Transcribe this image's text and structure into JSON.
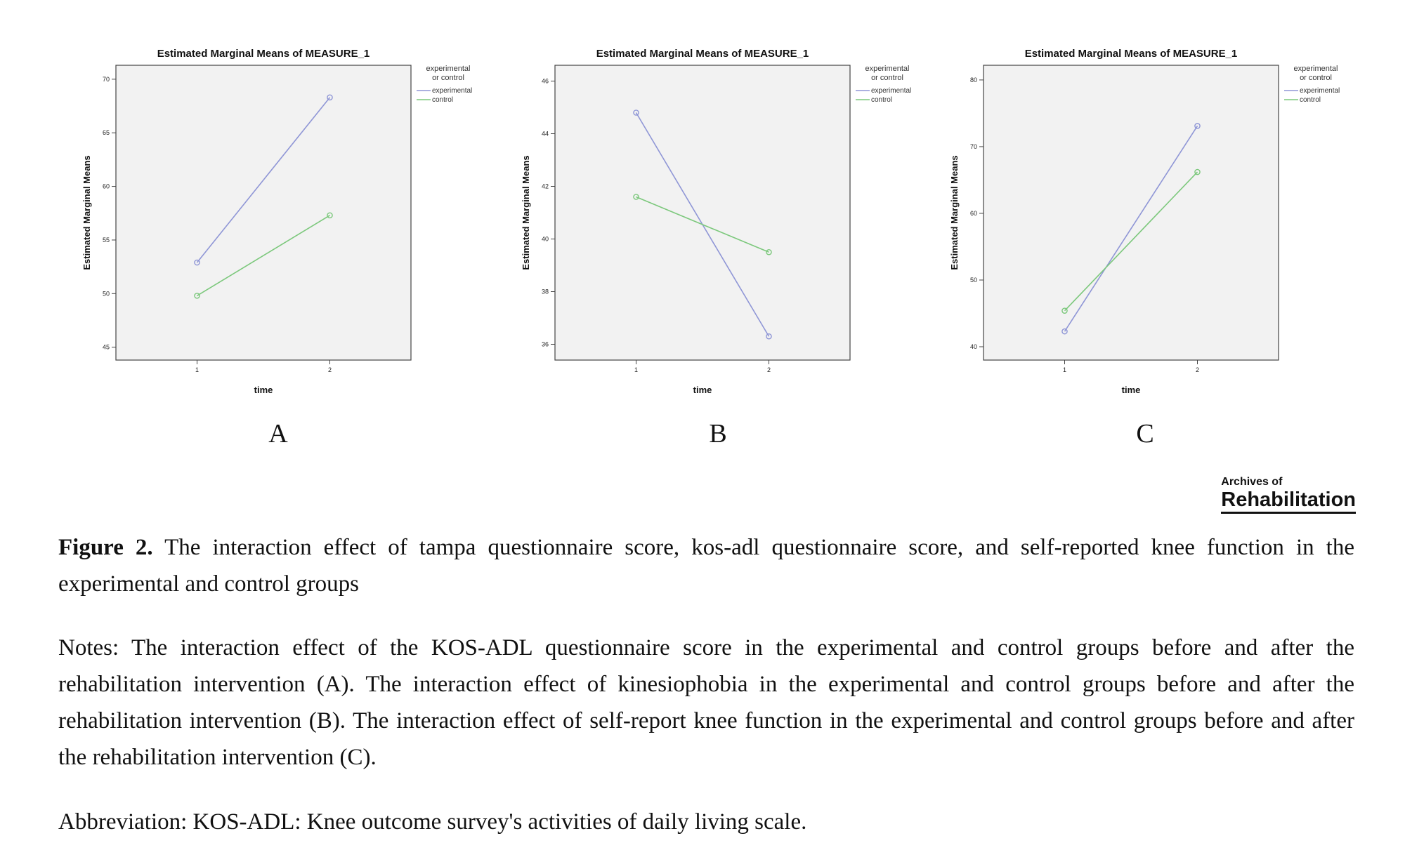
{
  "chart_data": [
    {
      "type": "line",
      "title": "Estimated Marginal Means of MEASURE_1",
      "xlabel": "time",
      "ylabel": "Estimated Marginal Means",
      "categories": [
        "1",
        "2"
      ],
      "yticks": [
        45,
        50,
        55,
        60,
        65,
        70
      ],
      "ylim": [
        43.8,
        71.3
      ],
      "legend_title": "experimental or control",
      "legend_position": "right-outside",
      "grid": false,
      "series": [
        {
          "name": "experimental",
          "values": [
            52.9,
            68.3
          ],
          "color": "#8f96d6"
        },
        {
          "name": "control",
          "values": [
            49.8,
            57.3
          ],
          "color": "#7cc87c"
        }
      ]
    },
    {
      "type": "line",
      "title": "Estimated Marginal Means of MEASURE_1",
      "xlabel": "time",
      "ylabel": "Estimated Marginal Means",
      "categories": [
        "1",
        "2"
      ],
      "yticks": [
        36,
        38,
        40,
        42,
        44,
        46
      ],
      "ylim": [
        35.4,
        46.6
      ],
      "legend_title": "experimental or control",
      "legend_position": "right-outside",
      "grid": false,
      "series": [
        {
          "name": "experimental",
          "values": [
            44.8,
            36.3
          ],
          "color": "#8f96d6"
        },
        {
          "name": "control",
          "values": [
            41.6,
            39.5
          ],
          "color": "#7cc87c"
        }
      ]
    },
    {
      "type": "line",
      "title": "Estimated Marginal Means of MEASURE_1",
      "xlabel": "time",
      "ylabel": "Estimated Marginal Means",
      "categories": [
        "1",
        "2"
      ],
      "yticks": [
        40,
        50,
        60,
        70,
        80
      ],
      "ylim": [
        38.0,
        82.2
      ],
      "legend_title": "experimental or control",
      "legend_position": "right-outside",
      "grid": false,
      "series": [
        {
          "name": "experimental",
          "values": [
            42.3,
            73.1
          ],
          "color": "#8f96d6"
        },
        {
          "name": "control",
          "values": [
            45.4,
            66.2
          ],
          "color": "#7cc87c"
        }
      ]
    }
  ],
  "panel_letters": [
    "A",
    "B",
    "C"
  ],
  "logo": {
    "line1": "Archives of",
    "line2": "Rehabilitation"
  },
  "caption": {
    "label": "Figure 2.",
    "text": " The interaction effect of tampa questionnaire score, kos-adl questionnaire score, and self-reported knee function in the experimental and control groups"
  },
  "notes": "Notes: The interaction effect of the KOS-ADL questionnaire score in the experimental and control groups before and after the rehabilitation intervention (A). The interaction effect of kinesiophobia in the experimental and control groups before and after the rehabilitation intervention (B). The interaction effect of self-report knee function in the experimental and control groups before and after the rehabilitation intervention (C).",
  "abbreviation": "Abbreviation: KOS-ADL: Knee outcome survey's activities of daily living scale."
}
